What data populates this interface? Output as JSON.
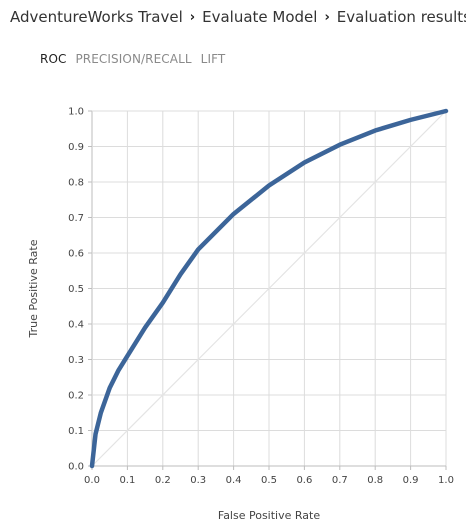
{
  "breadcrumb": {
    "items": [
      {
        "label": "AdventureWorks Travel"
      },
      {
        "label": "Evaluate Model"
      },
      {
        "label": "Evaluation results"
      }
    ],
    "separator": "›"
  },
  "tabs": [
    {
      "label": "ROC",
      "active": true
    },
    {
      "label": "PRECISION/RECALL",
      "active": false
    },
    {
      "label": "LIFT",
      "active": false
    }
  ],
  "chart_data": {
    "type": "line",
    "title": "",
    "xlabel": "False Positive Rate",
    "ylabel": "True Positive Rate",
    "xlim": [
      0,
      1
    ],
    "ylim": [
      0,
      1
    ],
    "x_ticks": [
      "0.0",
      "0.1",
      "0.2",
      "0.3",
      "0.4",
      "0.5",
      "0.6",
      "0.7",
      "0.8",
      "0.9",
      "1.0"
    ],
    "y_ticks": [
      "0.0",
      "0.1",
      "0.2",
      "0.3",
      "0.4",
      "0.5",
      "0.6",
      "0.7",
      "0.8",
      "0.9",
      "1.0"
    ],
    "grid": true,
    "series": [
      {
        "x": [
          0.0,
          0.01,
          0.025,
          0.05,
          0.075,
          0.1,
          0.15,
          0.2,
          0.25,
          0.3,
          0.35,
          0.4,
          0.5,
          0.6,
          0.7,
          0.8,
          0.9,
          1.0
        ],
        "y": [
          0.0,
          0.09,
          0.15,
          0.22,
          0.27,
          0.31,
          0.39,
          0.46,
          0.54,
          0.61,
          0.66,
          0.71,
          0.79,
          0.855,
          0.905,
          0.945,
          0.975,
          1.0
        ],
        "color": "#3c6599"
      },
      {
        "x": [
          0,
          1
        ],
        "y": [
          0,
          1
        ],
        "color": "#e4e4e4"
      }
    ]
  }
}
